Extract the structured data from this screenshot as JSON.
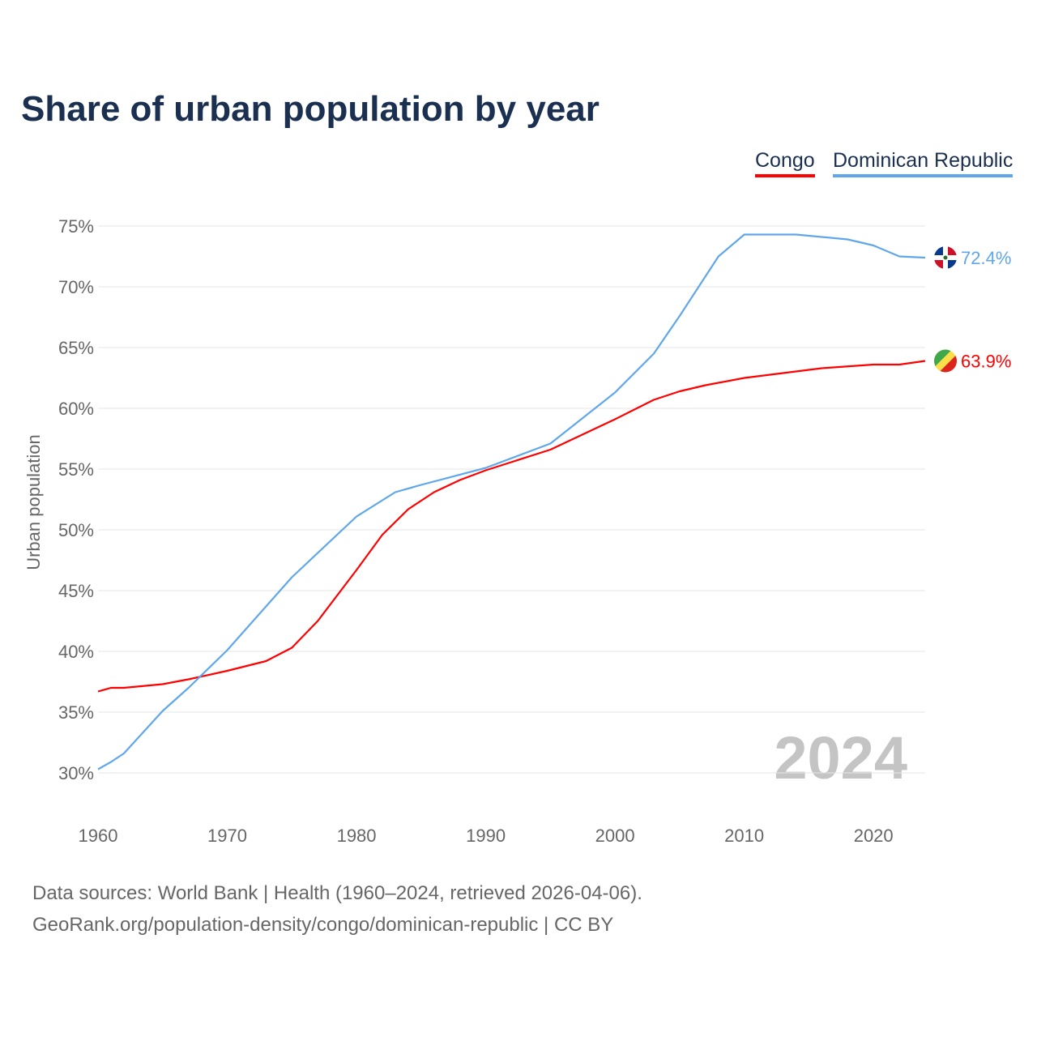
{
  "chart_data": {
    "type": "line",
    "title": "Share of urban population by year",
    "ylabel": "Urban population",
    "xlabel": "",
    "xlim": [
      1960,
      2024
    ],
    "ylim": [
      30,
      75
    ],
    "x_ticks": [
      "1960",
      "1970",
      "1980",
      "1990",
      "2000",
      "2010",
      "2020"
    ],
    "y_ticks": [
      "30%",
      "35%",
      "40%",
      "45%",
      "50%",
      "55%",
      "60%",
      "65%",
      "70%",
      "75%"
    ],
    "grid": true,
    "legend_position": "top-right",
    "year_watermark": "2024",
    "series": [
      {
        "name": "Congo",
        "color": "#ff0000",
        "end_label": "63.9%",
        "x": [
          1960,
          1961,
          1962,
          1965,
          1967,
          1970,
          1973,
          1975,
          1977,
          1980,
          1982,
          1984,
          1986,
          1988,
          1990,
          1995,
          2000,
          2003,
          2005,
          2007,
          2010,
          2013,
          2016,
          2020,
          2022,
          2024
        ],
        "y": [
          36.7,
          37.0,
          37.0,
          37.3,
          37.7,
          38.4,
          39.2,
          40.3,
          42.5,
          46.7,
          49.6,
          51.7,
          53.1,
          54.1,
          54.9,
          56.6,
          59.1,
          60.7,
          61.4,
          61.9,
          62.5,
          62.9,
          63.3,
          63.6,
          63.6,
          63.9
        ]
      },
      {
        "name": "Dominican Republic",
        "color": "#5fa7ea",
        "end_label": "72.4%",
        "x": [
          1960,
          1961,
          1962,
          1965,
          1967,
          1970,
          1975,
          1980,
          1983,
          1985,
          1990,
          1995,
          2000,
          2003,
          2005,
          2008,
          2010,
          2014,
          2015,
          2018,
          2020,
          2022,
          2024
        ],
        "y": [
          30.3,
          30.9,
          31.6,
          35.1,
          37.0,
          40.1,
          46.1,
          51.1,
          53.1,
          53.7,
          55.1,
          57.1,
          61.3,
          64.5,
          67.6,
          72.5,
          74.3,
          74.3,
          74.2,
          73.9,
          73.4,
          72.5,
          72.4
        ]
      }
    ]
  },
  "footer": {
    "line1": "Data sources: World Bank | Health (1960–2024, retrieved 2026-04-06).",
    "line2": "GeoRank.org/population-density/congo/dominican-republic | CC BY"
  }
}
